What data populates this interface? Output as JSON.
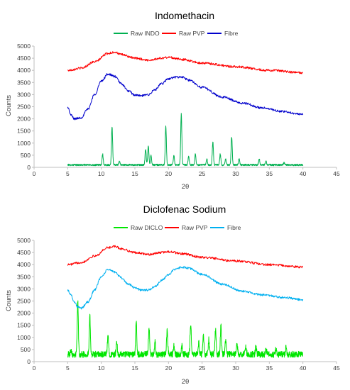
{
  "chart_data": [
    {
      "type": "line",
      "title": "Indomethacin",
      "xlabel": "2θ",
      "ylabel": "Counts",
      "xlim": [
        0,
        45
      ],
      "ylim": [
        0,
        5000
      ],
      "xticks": [
        0,
        5,
        10,
        15,
        20,
        25,
        30,
        35,
        40,
        45
      ],
      "yticks": [
        0,
        500,
        1000,
        1500,
        2000,
        2500,
        3000,
        3500,
        4000,
        4500,
        5000
      ],
      "grid": false,
      "legend": "top",
      "series": [
        {
          "name": "Raw INDO",
          "color": "#00b050",
          "kind": "peaks",
          "x_range": [
            5,
            40
          ],
          "baseline": 100,
          "peaks": [
            {
              "x": 10.2,
              "h": 450
            },
            {
              "x": 11.6,
              "h": 1550
            },
            {
              "x": 12.7,
              "h": 150
            },
            {
              "x": 16.6,
              "h": 650
            },
            {
              "x": 17.0,
              "h": 800
            },
            {
              "x": 17.4,
              "h": 400
            },
            {
              "x": 19.6,
              "h": 1600
            },
            {
              "x": 20.8,
              "h": 400
            },
            {
              "x": 21.9,
              "h": 2100
            },
            {
              "x": 23.0,
              "h": 350
            },
            {
              "x": 24.0,
              "h": 450
            },
            {
              "x": 25.7,
              "h": 250
            },
            {
              "x": 26.6,
              "h": 950
            },
            {
              "x": 27.7,
              "h": 450
            },
            {
              "x": 28.5,
              "h": 250
            },
            {
              "x": 29.4,
              "h": 1150
            },
            {
              "x": 30.5,
              "h": 250
            },
            {
              "x": 33.5,
              "h": 250
            },
            {
              "x": 34.5,
              "h": 150
            },
            {
              "x": 37.2,
              "h": 100
            }
          ]
        },
        {
          "name": "Raw PVP",
          "color": "#ff0000",
          "kind": "curve",
          "points": [
            [
              5,
              4000
            ],
            [
              7,
              4090
            ],
            [
              9,
              4350
            ],
            [
              11,
              4700
            ],
            [
              12,
              4750
            ],
            [
              13,
              4650
            ],
            [
              15,
              4500
            ],
            [
              17,
              4420
            ],
            [
              19,
              4500
            ],
            [
              20,
              4540
            ],
            [
              22,
              4450
            ],
            [
              25,
              4300
            ],
            [
              30,
              4150
            ],
            [
              35,
              4000
            ],
            [
              40,
              3900
            ]
          ]
        },
        {
          "name": "Fibre",
          "color": "#0000cc",
          "kind": "curve",
          "points": [
            [
              5,
              2480
            ],
            [
              5.5,
              2150
            ],
            [
              6,
              2000
            ],
            [
              7,
              2050
            ],
            [
              8,
              2400
            ],
            [
              9,
              3000
            ],
            [
              10,
              3550
            ],
            [
              11,
              3850
            ],
            [
              12,
              3750
            ],
            [
              13,
              3450
            ],
            [
              14,
              3150
            ],
            [
              15,
              2980
            ],
            [
              16,
              2950
            ],
            [
              17,
              3000
            ],
            [
              18,
              3200
            ],
            [
              19,
              3450
            ],
            [
              20,
              3650
            ],
            [
              21,
              3720
            ],
            [
              22,
              3720
            ],
            [
              23,
              3600
            ],
            [
              25,
              3300
            ],
            [
              28,
              2900
            ],
            [
              31,
              2650
            ],
            [
              34,
              2450
            ],
            [
              37,
              2300
            ],
            [
              40,
              2180
            ]
          ]
        }
      ]
    },
    {
      "type": "line",
      "title": "Diclofenac Sodium",
      "xlabel": "2θ",
      "ylabel": "Counts",
      "xlim": [
        0,
        45
      ],
      "ylim": [
        0,
        5000
      ],
      "xticks": [
        0,
        5,
        10,
        15,
        20,
        25,
        30,
        35,
        40,
        45
      ],
      "yticks": [
        0,
        500,
        1000,
        1500,
        2000,
        2500,
        3000,
        3500,
        4000,
        4500,
        5000
      ],
      "grid": false,
      "legend": "top",
      "series": [
        {
          "name": "Raw DICLO",
          "color": "#00e600",
          "kind": "peaks",
          "x_range": [
            5,
            40
          ],
          "baseline": 300,
          "peaks": [
            {
              "x": 5.5,
              "h": 200
            },
            {
              "x": 6.5,
              "h": 2200
            },
            {
              "x": 8.3,
              "h": 1550
            },
            {
              "x": 11.0,
              "h": 800
            },
            {
              "x": 12.3,
              "h": 450
            },
            {
              "x": 15.2,
              "h": 1300
            },
            {
              "x": 17.1,
              "h": 1050
            },
            {
              "x": 18.0,
              "h": 500
            },
            {
              "x": 19.8,
              "h": 1000
            },
            {
              "x": 20.8,
              "h": 400
            },
            {
              "x": 22.0,
              "h": 350
            },
            {
              "x": 23.3,
              "h": 1300
            },
            {
              "x": 24.5,
              "h": 500
            },
            {
              "x": 25.2,
              "h": 800
            },
            {
              "x": 26.0,
              "h": 600
            },
            {
              "x": 27.0,
              "h": 1050
            },
            {
              "x": 27.8,
              "h": 1200
            },
            {
              "x": 28.5,
              "h": 600
            },
            {
              "x": 30.2,
              "h": 400
            },
            {
              "x": 31.5,
              "h": 350
            },
            {
              "x": 33.0,
              "h": 300
            },
            {
              "x": 34.5,
              "h": 250
            },
            {
              "x": 36.0,
              "h": 200
            },
            {
              "x": 37.5,
              "h": 300
            }
          ]
        },
        {
          "name": "Raw PVP",
          "color": "#ff0000",
          "kind": "curve",
          "points": [
            [
              5,
              4000
            ],
            [
              7,
              4090
            ],
            [
              9,
              4350
            ],
            [
              11,
              4700
            ],
            [
              12,
              4750
            ],
            [
              13,
              4650
            ],
            [
              15,
              4500
            ],
            [
              17,
              4420
            ],
            [
              19,
              4500
            ],
            [
              20,
              4540
            ],
            [
              22,
              4450
            ],
            [
              25,
              4300
            ],
            [
              30,
              4150
            ],
            [
              35,
              4000
            ],
            [
              40,
              3900
            ]
          ]
        },
        {
          "name": "Fibre",
          "color": "#00b0f0",
          "kind": "curve",
          "points": [
            [
              5,
              2950
            ],
            [
              5.5,
              2750
            ],
            [
              6,
              2450
            ],
            [
              6.5,
              2250
            ],
            [
              7,
              2200
            ],
            [
              8,
              2450
            ],
            [
              9,
              2950
            ],
            [
              10,
              3500
            ],
            [
              11,
              3800
            ],
            [
              12,
              3700
            ],
            [
              13,
              3450
            ],
            [
              14,
              3200
            ],
            [
              15,
              3050
            ],
            [
              16,
              2950
            ],
            [
              17,
              2950
            ],
            [
              18,
              3100
            ],
            [
              19,
              3350
            ],
            [
              20,
              3600
            ],
            [
              21,
              3800
            ],
            [
              22,
              3900
            ],
            [
              23,
              3850
            ],
            [
              25,
              3600
            ],
            [
              28,
              3200
            ],
            [
              31,
              2900
            ],
            [
              34,
              2750
            ],
            [
              37,
              2650
            ],
            [
              40,
              2550
            ]
          ]
        }
      ]
    }
  ]
}
